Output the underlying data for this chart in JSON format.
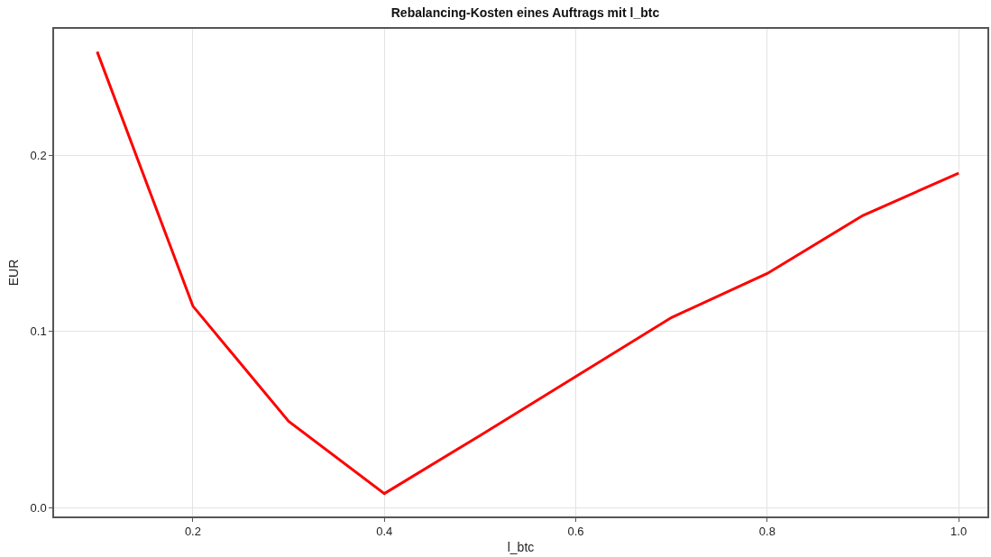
{
  "chart_data": {
    "type": "line",
    "title": "Rebalancing-Kosten eines Auftrags mit l_btc",
    "xlabel": "l_btc",
    "ylabel": "EUR",
    "x": [
      0.1,
      0.2,
      0.3,
      0.4,
      0.5,
      0.6,
      0.7,
      0.8,
      0.9,
      1.0
    ],
    "series": [
      {
        "color": "#ff0000",
        "values": [
          0.259,
          0.1145,
          0.049,
          0.008,
          0.041,
          0.0745,
          0.108,
          0.133,
          0.166,
          0.19
        ]
      }
    ],
    "xlim": [
      0.055,
      1.03
    ],
    "ylim": [
      -0.005,
      0.272
    ],
    "xticks": [
      0.2,
      0.4,
      0.6,
      0.8,
      {
        "value": 1,
        "label": "1.0"
      }
    ],
    "yticks": [
      {
        "value": 0,
        "label": "0.0"
      },
      0.1,
      0.2
    ],
    "grid": true,
    "marker": "none",
    "line_style": "solid"
  }
}
